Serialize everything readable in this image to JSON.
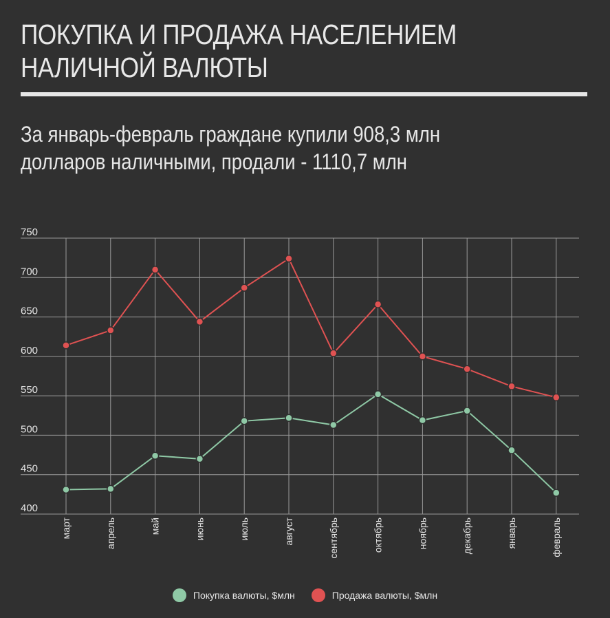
{
  "header": {
    "title_line1": "ПОКУПКА И ПРОДАЖА НАСЕЛЕНИЕМ",
    "title_line2": "НАЛИЧНОЙ ВАЛЮТЫ",
    "subtitle_line1": "За январь-февраль граждане купили 908,3 млн",
    "subtitle_line2": "долларов наличными, продали - 1110,7 млн"
  },
  "colors": {
    "background": "#303030",
    "grid": "#9a9a9a",
    "buy": "#8fc9a6",
    "sell": "#e05252"
  },
  "chart_data": {
    "type": "line",
    "categories": [
      "март",
      "апрель",
      "май",
      "июнь",
      "июль",
      "август",
      "сентябрь",
      "октябрь",
      "ноябрь",
      "декабрь",
      "январь",
      "февраль"
    ],
    "series": [
      {
        "name": "Покупка валюты, $млн",
        "color": "#8fc9a6",
        "values": [
          431,
          432,
          474,
          470,
          518,
          522,
          513,
          552,
          519,
          531,
          481,
          427
        ]
      },
      {
        "name": "Продажа валюты, $млн",
        "color": "#e05252",
        "values": [
          614,
          633,
          710,
          644,
          687,
          724,
          604,
          666,
          600,
          584,
          562,
          548
        ]
      }
    ],
    "ylim": [
      400,
      750
    ],
    "yticks": [
      400,
      450,
      500,
      550,
      600,
      650,
      700,
      750
    ],
    "grid": true,
    "legend_position": "bottom-center"
  }
}
